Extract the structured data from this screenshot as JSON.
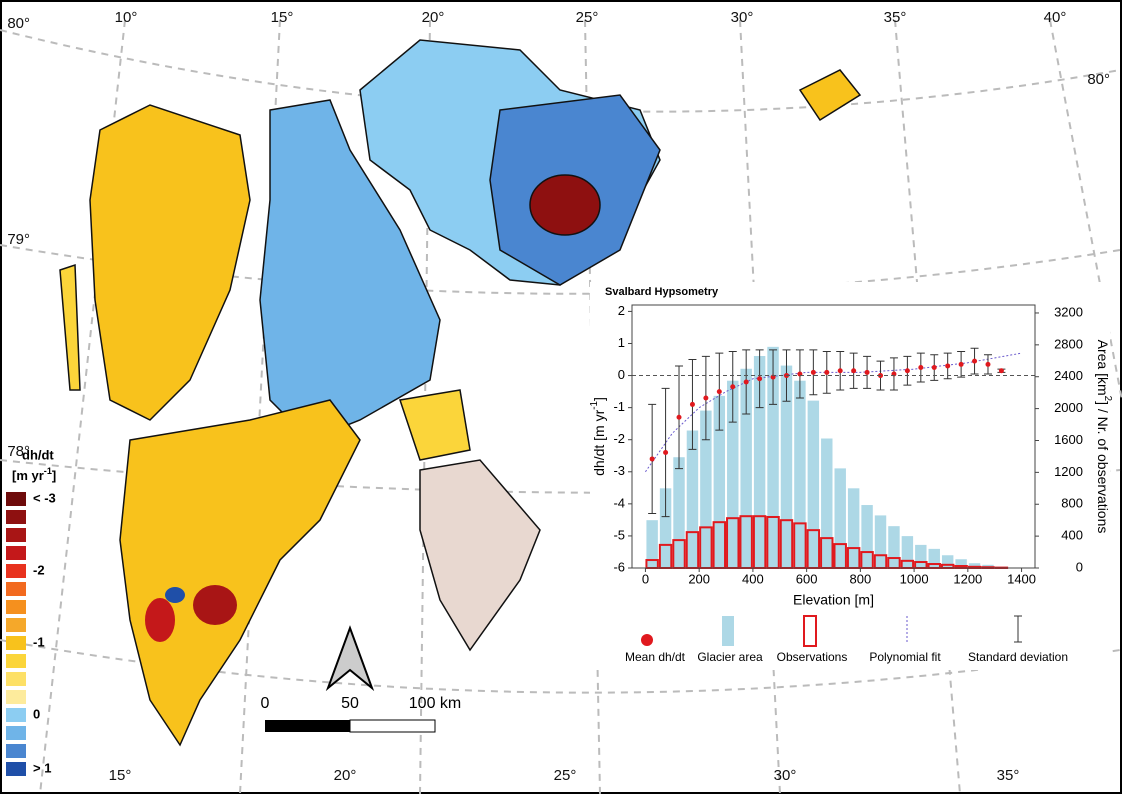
{
  "map": {
    "lat_left": [
      "80°",
      "79°",
      "78°"
    ],
    "lat_right": [
      "80°"
    ],
    "lon_top": [
      "10°",
      "15°",
      "20°",
      "25°",
      "30°",
      "35°",
      "40°"
    ],
    "lon_bottom": [
      "15°",
      "20°",
      "25°",
      "30°",
      "35°"
    ],
    "legend": {
      "title": "dh/dt",
      "unit_parts": [
        "[m yr",
        "-1",
        "]"
      ],
      "labels": [
        "< -3",
        "-2",
        "-1",
        "0",
        "> 1"
      ],
      "colors": [
        "#6e0b0b",
        "#8e1010",
        "#a81515",
        "#c4181a",
        "#e8321e",
        "#f26a1f",
        "#f5901e",
        "#f5a82a",
        "#f8c21c",
        "#fbd53a",
        "#fde066",
        "#fdeb9c",
        "#8ccdf2",
        "#6fb4e8",
        "#4a86d0",
        "#1f4fa8"
      ]
    },
    "scale": {
      "labels": [
        "0",
        "50",
        "100 km"
      ]
    }
  },
  "chart_data": {
    "type": "combo",
    "title": "Svalbard Hypsometry",
    "xlabel": "Elevation [m]",
    "ylabel_parts": [
      "dh/dt [m yr",
      "-1",
      "]"
    ],
    "y2label_parts": [
      "Area [km",
      "2",
      "] / Nr. of observations"
    ],
    "xlim": [
      -50,
      1450
    ],
    "xticks": [
      0,
      200,
      400,
      600,
      800,
      1000,
      1200,
      1400
    ],
    "ylim": [
      -6,
      2.2
    ],
    "yticks": [
      -6,
      -5,
      -4,
      -3,
      -2,
      -1,
      0,
      1,
      2
    ],
    "y2lim": [
      0,
      3300
    ],
    "y2ticks": [
      0,
      400,
      800,
      1200,
      1600,
      2000,
      2400,
      2800,
      3200
    ],
    "bins": [
      0,
      50,
      100,
      150,
      200,
      250,
      300,
      350,
      400,
      450,
      500,
      550,
      600,
      650,
      700,
      750,
      800,
      850,
      900,
      950,
      1000,
      1050,
      1100,
      1150,
      1200,
      1250,
      1300,
      1350
    ],
    "series": [
      {
        "name": "Glacier area",
        "type": "histogram",
        "axis": "y2",
        "color": "#add8e6",
        "values": [
          600,
          1000,
          1390,
          1725,
          1975,
          2160,
          2350,
          2500,
          2660,
          2775,
          2540,
          2350,
          2100,
          1625,
          1250,
          1000,
          790,
          660,
          525,
          400,
          290,
          240,
          160,
          110,
          60,
          40,
          15
        ]
      },
      {
        "name": "Observations",
        "type": "histogram",
        "axis": "y2",
        "color": "#e0191e",
        "values": [
          100,
          290,
          350,
          450,
          510,
          575,
          625,
          650,
          650,
          640,
          600,
          560,
          475,
          375,
          300,
          250,
          200,
          160,
          125,
          90,
          75,
          50,
          40,
          25,
          15,
          10,
          5
        ]
      },
      {
        "name": "Mean dh/dt",
        "type": "scatter",
        "color": "#e0191e",
        "error_name": "Standard deviation",
        "x": [
          25,
          75,
          125,
          175,
          225,
          275,
          325,
          375,
          425,
          475,
          525,
          575,
          625,
          675,
          725,
          775,
          825,
          875,
          925,
          975,
          1025,
          1075,
          1125,
          1175,
          1225,
          1275,
          1325
        ],
        "values": [
          -2.6,
          -2.4,
          -1.3,
          -0.9,
          -0.7,
          -0.5,
          -0.35,
          -0.2,
          -0.1,
          -0.05,
          0,
          0.05,
          0.1,
          0.1,
          0.15,
          0.15,
          0.1,
          0,
          0.05,
          0.15,
          0.25,
          0.25,
          0.3,
          0.35,
          0.45,
          0.35,
          0.15
        ],
        "errors": [
          1.7,
          2,
          1.6,
          1.4,
          1.3,
          1.2,
          1.1,
          1,
          0.9,
          0.85,
          0.8,
          0.75,
          0.7,
          0.65,
          0.6,
          0.55,
          0.5,
          0.45,
          0.5,
          0.45,
          0.45,
          0.4,
          0.4,
          0.4,
          0.4,
          0.3,
          0.05
        ]
      },
      {
        "name": "Polynomial fit",
        "type": "line",
        "color": "#6a5acd",
        "x": [
          0,
          100,
          200,
          300,
          400,
          600,
          800,
          1000,
          1200,
          1400
        ],
        "values": [
          -3,
          -1.8,
          -1,
          -0.5,
          -0.1,
          0.1,
          0.1,
          0.2,
          0.4,
          0.7
        ]
      }
    ]
  }
}
